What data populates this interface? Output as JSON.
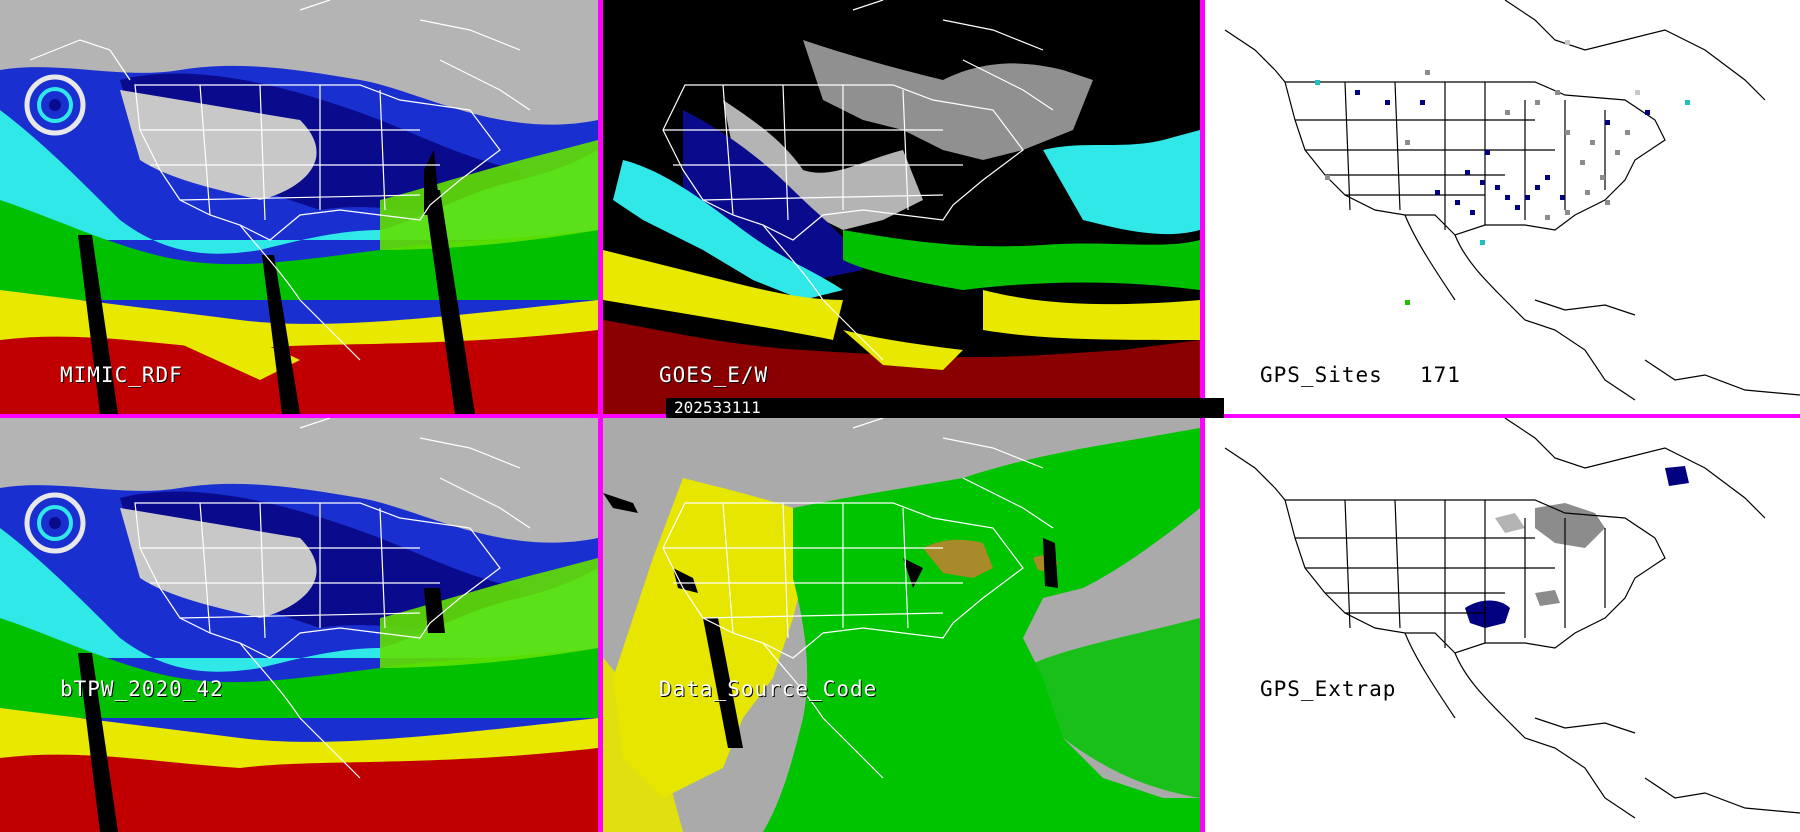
{
  "timestamp": "202533111",
  "panels": [
    {
      "id": "mimic",
      "label": "MIMIC_RDF",
      "style": "tpw-color"
    },
    {
      "id": "goes",
      "label": "GOES_E/W",
      "style": "goes"
    },
    {
      "id": "gps_sites",
      "label": "GPS_Sites",
      "count": "171",
      "style": "gps"
    },
    {
      "id": "btpw",
      "label": "bTPW_2020_42",
      "style": "tpw-color"
    },
    {
      "id": "dsc",
      "label": "Data_Source_Code",
      "style": "dsc"
    },
    {
      "id": "gps_extrap",
      "label": "GPS_Extrap",
      "style": "gps"
    }
  ],
  "colors": {
    "divider": "#ff00ff",
    "tpw_scale": [
      "#9a9a9a",
      "#c8c8c8",
      "#0a0a8c",
      "#1a2fd0",
      "#00b8d0",
      "#30e8e8",
      "#00c000",
      "#60e000",
      "#e8e800",
      "#d0d000",
      "#c00000",
      "#a00000"
    ],
    "dsc_yellow": "#e6e600",
    "dsc_green": "#00c400",
    "dsc_gray": "#aaaaaa",
    "dsc_olive": "#a88a2a",
    "gps_navy": "#000080",
    "gps_gray": "#8c8c8c",
    "gps_cyan": "#20c0c0"
  }
}
